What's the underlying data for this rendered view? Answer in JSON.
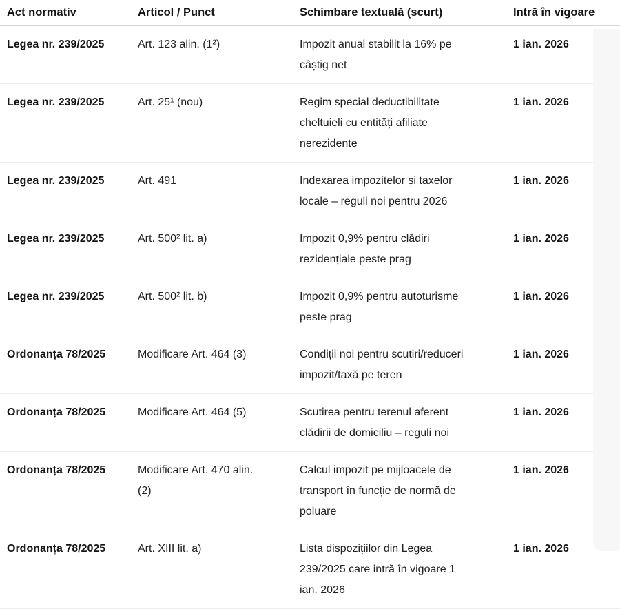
{
  "table": {
    "columns": [
      {
        "key": "act",
        "label": "Act normativ"
      },
      {
        "key": "articol",
        "label": "Articol / Punct"
      },
      {
        "key": "schimbare",
        "label": "Schimbare textuală (scurt)"
      },
      {
        "key": "vigoare",
        "label": "Intră în vigoare"
      }
    ],
    "rows": [
      {
        "act": "Legea nr. 239/2025",
        "articol": "Art. 123 alin. (1²)",
        "schimbare": "Impozit anual stabilit la 16% pe\ncâștig net",
        "vigoare": "1 ian. 2026"
      },
      {
        "act": "Legea nr. 239/2025",
        "articol": "Art. 25¹ (nou)",
        "schimbare": "Regim special deductibilitate\ncheltuieli cu entități afiliate\nnerezidente",
        "vigoare": "1 ian. 2026"
      },
      {
        "act": "Legea nr. 239/2025",
        "articol": "Art. 491",
        "schimbare": "Indexarea impozitelor și taxelor\nlocale – reguli noi pentru 2026",
        "vigoare": "1 ian. 2026"
      },
      {
        "act": "Legea nr. 239/2025",
        "articol": "Art. 500² lit. a)",
        "schimbare": "Impozit 0,9% pentru clădiri\nrezidențiale peste prag",
        "vigoare": "1 ian. 2026"
      },
      {
        "act": "Legea nr. 239/2025",
        "articol": "Art. 500² lit. b)",
        "schimbare": "Impozit 0,9% pentru autoturisme\npeste prag",
        "vigoare": "1 ian. 2026"
      },
      {
        "act": "Ordonanța 78/2025",
        "articol": "Modificare Art. 464 (3)",
        "schimbare": "Condiții noi pentru scutiri/reduceri\nimpozit/taxă pe teren",
        "vigoare": "1 ian. 2026"
      },
      {
        "act": "Ordonanța 78/2025",
        "articol": "Modificare Art. 464 (5)",
        "schimbare": "Scutirea pentru terenul aferent\nclădirii de domiciliu – reguli noi",
        "vigoare": "1 ian. 2026"
      },
      {
        "act": "Ordonanța 78/2025",
        "articol": "Modificare Art. 470 alin.\n(2)",
        "schimbare": "Calcul impozit pe mijloacele de\ntransport în funcție de normă de\npoluare",
        "vigoare": "1 ian. 2026"
      },
      {
        "act": "Ordonanța 78/2025",
        "articol": "Art. XIII lit. a)",
        "schimbare": "Lista dispozițiilor din Legea\n239/2025 care intră în vigoare 1\nian. 2026",
        "vigoare": "1 ian. 2026"
      }
    ],
    "scrollbar_track_color": "#f7f7f7"
  }
}
